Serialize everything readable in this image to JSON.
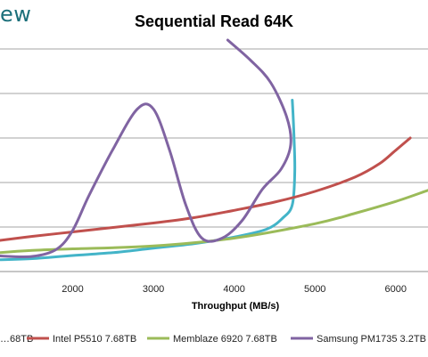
{
  "header": {
    "logo_text": "ew",
    "title": "Sequential Read 64K"
  },
  "chart_data": {
    "type": "line",
    "title": "Sequential Read 64K",
    "xlabel": "Throughput (MB/s)",
    "ylabel": "",
    "xlim": [
      1100,
      6400
    ],
    "ylim": [
      0,
      1000
    ],
    "x_ticks": [
      2000,
      3000,
      4000,
      5000,
      6000
    ],
    "gridlines": "horizontal",
    "legend_position": "bottom",
    "series": [
      {
        "name": "…68TB",
        "color": "#43b4c8",
        "points": [
          [
            1100,
            53
          ],
          [
            1500,
            58
          ],
          [
            2000,
            72
          ],
          [
            2500,
            85
          ],
          [
            3000,
            105
          ],
          [
            3500,
            125
          ],
          [
            4000,
            155
          ],
          [
            4400,
            190
          ],
          [
            4600,
            240
          ],
          [
            4720,
            300
          ],
          [
            4750,
            450
          ],
          [
            4740,
            610
          ],
          [
            4720,
            770
          ]
        ]
      },
      {
        "name": "Intel P5510 7.68TB",
        "color": "#c0504d",
        "points": [
          [
            1100,
            140
          ],
          [
            1500,
            158
          ],
          [
            2000,
            178
          ],
          [
            2500,
            198
          ],
          [
            3000,
            218
          ],
          [
            3500,
            242
          ],
          [
            4000,
            275
          ],
          [
            4500,
            312
          ],
          [
            5000,
            360
          ],
          [
            5500,
            425
          ],
          [
            5800,
            485
          ],
          [
            6000,
            545
          ],
          [
            6180,
            600
          ]
        ]
      },
      {
        "name": "Memblaze 6920 7.68TB",
        "color": "#9bbb59",
        "points": [
          [
            1100,
            85
          ],
          [
            1500,
            95
          ],
          [
            2000,
            102
          ],
          [
            3000,
            115
          ],
          [
            4000,
            150
          ],
          [
            5000,
            215
          ],
          [
            5500,
            262
          ],
          [
            6000,
            315
          ],
          [
            6400,
            365
          ]
        ]
      },
      {
        "name": "Samsung PM1735 3.2TB",
        "color": "#8064a2",
        "points": [
          [
            1100,
            70
          ],
          [
            1500,
            68
          ],
          [
            1800,
            100
          ],
          [
            2000,
            185
          ],
          [
            2200,
            340
          ],
          [
            2500,
            550
          ],
          [
            2800,
            730
          ],
          [
            3000,
            730
          ],
          [
            3200,
            545
          ],
          [
            3400,
            300
          ],
          [
            3600,
            150
          ],
          [
            3850,
            150
          ],
          [
            4100,
            230
          ],
          [
            4350,
            370
          ],
          [
            4580,
            460
          ],
          [
            4700,
            570
          ],
          [
            4650,
            695
          ],
          [
            4450,
            850
          ],
          [
            4200,
            950
          ],
          [
            3920,
            1040
          ]
        ]
      }
    ]
  }
}
